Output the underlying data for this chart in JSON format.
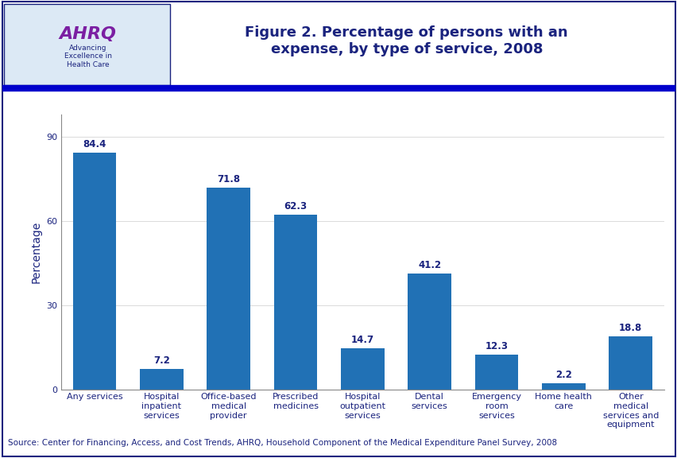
{
  "title": "Figure 2. Percentage of persons with an\nexpense, by type of service, 2008",
  "title_color": "#1a237e",
  "title_fontsize": 13,
  "ylabel": "Percentage",
  "ylabel_color": "#1a237e",
  "ylabel_fontsize": 10,
  "categories": [
    "Any services",
    "Hospital\ninpatient\nservices",
    "Office-based\nmedical\nprovider",
    "Prescribed\nmedicines",
    "Hospital\noutpatient\nservices",
    "Dental\nservices",
    "Emergency\nroom\nservices",
    "Home health\ncare",
    "Other\nmedical\nservices and\nequipment"
  ],
  "values": [
    84.4,
    7.2,
    71.8,
    62.3,
    14.7,
    41.2,
    12.3,
    2.2,
    18.8
  ],
  "bar_color": "#2171b5",
  "yticks": [
    0,
    30,
    60,
    90
  ],
  "ylim": [
    0,
    98
  ],
  "source_text": "Source: Center for Financing, Access, and Cost Trends, AHRQ, Household Component of the Medical Expenditure Panel Survey, 2008",
  "source_fontsize": 7.5,
  "source_color": "#1a237e",
  "label_color": "#1a237e",
  "label_fontsize": 8.5,
  "background_color": "#ffffff",
  "divider_color": "#0000cc",
  "tick_label_color": "#1a237e",
  "tick_label_fontsize": 8,
  "outer_border_color": "#1a237e",
  "header_box_border": "#1a237e",
  "header_bg": "#dce9f5"
}
